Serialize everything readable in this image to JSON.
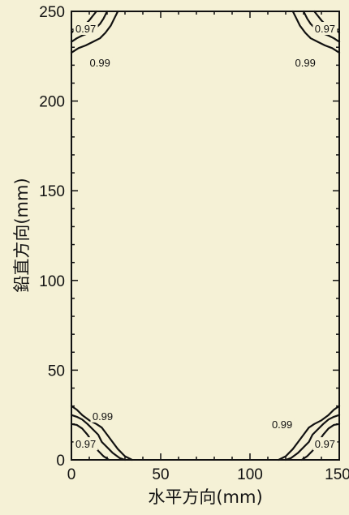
{
  "chart_data": {
    "type": "contour",
    "title": "",
    "xlabel": "水平方向(mm)",
    "ylabel": "鉛直方向(mm)",
    "xlim": [
      0,
      150
    ],
    "ylim": [
      0,
      250
    ],
    "x_ticks": [
      "0",
      "50",
      "100",
      "150"
    ],
    "y_ticks": [
      "0",
      "50",
      "100",
      "150",
      "200",
      "250"
    ],
    "grid": false,
    "background": "#f5f1d6",
    "line_color": "#111111",
    "contours": [
      {
        "level": "0.97",
        "corner": "top-left",
        "points": [
          [
            0,
            238
          ],
          [
            2,
            240
          ],
          [
            4,
            241.5
          ],
          [
            6,
            242
          ],
          [
            8,
            243
          ],
          [
            10,
            245
          ],
          [
            12,
            247.5
          ],
          [
            14,
            250
          ]
        ]
      },
      {
        "level": "",
        "corner": "top-left",
        "points": [
          [
            0,
            233
          ],
          [
            3,
            235
          ],
          [
            6,
            236.5
          ],
          [
            10,
            238
          ],
          [
            13,
            240
          ],
          [
            16,
            243
          ],
          [
            18,
            246
          ],
          [
            20,
            250
          ]
        ]
      },
      {
        "level": "0.99",
        "corner": "top-left",
        "points": [
          [
            0,
            227
          ],
          [
            4,
            229.5
          ],
          [
            8,
            231
          ],
          [
            12,
            233
          ],
          [
            16,
            235
          ],
          [
            19,
            238
          ],
          [
            22,
            242
          ],
          [
            24,
            246
          ],
          [
            26,
            250
          ]
        ]
      },
      {
        "level": "0.97",
        "corner": "top-right",
        "points": [
          [
            150,
            238
          ],
          [
            148,
            240
          ],
          [
            146,
            241.5
          ],
          [
            144,
            242
          ],
          [
            142,
            243
          ],
          [
            140,
            245
          ],
          [
            138,
            247.5
          ],
          [
            136,
            250
          ]
        ]
      },
      {
        "level": "",
        "corner": "top-right",
        "points": [
          [
            150,
            233
          ],
          [
            147,
            235
          ],
          [
            144,
            236.5
          ],
          [
            140,
            238
          ],
          [
            137,
            240
          ],
          [
            134,
            243
          ],
          [
            132,
            246
          ],
          [
            130,
            250
          ]
        ]
      },
      {
        "level": "0.99",
        "corner": "top-right",
        "points": [
          [
            150,
            227
          ],
          [
            146,
            229.5
          ],
          [
            142,
            231
          ],
          [
            138,
            233
          ],
          [
            134,
            235
          ],
          [
            131,
            238
          ],
          [
            128,
            242
          ],
          [
            126,
            246
          ],
          [
            124,
            250
          ]
        ]
      },
      {
        "level": "0.97",
        "corner": "bottom-left",
        "points": [
          [
            0,
            30
          ],
          [
            3,
            28
          ],
          [
            6,
            25
          ],
          [
            10,
            22
          ],
          [
            14,
            20
          ],
          [
            17,
            18
          ],
          [
            20,
            14
          ],
          [
            23,
            10
          ],
          [
            26,
            6
          ],
          [
            30,
            2
          ],
          [
            34,
            0
          ]
        ]
      },
      {
        "level": "",
        "corner": "bottom-left",
        "points": [
          [
            0,
            25
          ],
          [
            3,
            24
          ],
          [
            6,
            22.5
          ],
          [
            9,
            20
          ],
          [
            12,
            17
          ],
          [
            15,
            14
          ],
          [
            17,
            10
          ],
          [
            20,
            7
          ],
          [
            23,
            4
          ],
          [
            27,
            1
          ],
          [
            30,
            0
          ]
        ]
      },
      {
        "level": "0.99",
        "corner": "bottom-left",
        "points": [
          [
            0,
            20
          ],
          [
            3,
            19.5
          ],
          [
            6,
            17.5
          ],
          [
            9,
            14
          ],
          [
            11,
            11
          ],
          [
            13,
            8
          ],
          [
            15,
            5
          ],
          [
            18,
            2
          ],
          [
            21,
            0
          ]
        ]
      },
      {
        "level": "0.97",
        "corner": "bottom-right",
        "points": [
          [
            150,
            30
          ],
          [
            147,
            28
          ],
          [
            144,
            25
          ],
          [
            140,
            22
          ],
          [
            136,
            20
          ],
          [
            133,
            18
          ],
          [
            130,
            14
          ],
          [
            127,
            10
          ],
          [
            124,
            6
          ],
          [
            120,
            2
          ],
          [
            116,
            0
          ]
        ]
      },
      {
        "level": "",
        "corner": "bottom-right",
        "points": [
          [
            150,
            25
          ],
          [
            147,
            24
          ],
          [
            144,
            22.5
          ],
          [
            141,
            20
          ],
          [
            138,
            17
          ],
          [
            135,
            14
          ],
          [
            133,
            10
          ],
          [
            130,
            7
          ],
          [
            127,
            4
          ],
          [
            123,
            1
          ],
          [
            120,
            0
          ]
        ]
      },
      {
        "level": "0.99",
        "corner": "bottom-right",
        "points": [
          [
            150,
            20
          ],
          [
            147,
            19.5
          ],
          [
            144,
            17.5
          ],
          [
            141,
            14
          ],
          [
            139,
            11
          ],
          [
            137,
            8
          ],
          [
            135,
            5
          ],
          [
            132,
            2
          ],
          [
            129,
            0
          ]
        ]
      }
    ],
    "labels": [
      {
        "text": "0.97",
        "x": 8,
        "y": 240.5
      },
      {
        "text": "0.99",
        "x": 16,
        "y": 221.5
      },
      {
        "text": "0.97",
        "x": 142,
        "y": 240.5
      },
      {
        "text": "0.99",
        "x": 131,
        "y": 221.5
      },
      {
        "text": "0.99",
        "x": 17.5,
        "y": 24.5
      },
      {
        "text": "0.97",
        "x": 8,
        "y": 9
      },
      {
        "text": "0.99",
        "x": 118,
        "y": 20
      },
      {
        "text": "0.97",
        "x": 142,
        "y": 9
      }
    ]
  }
}
